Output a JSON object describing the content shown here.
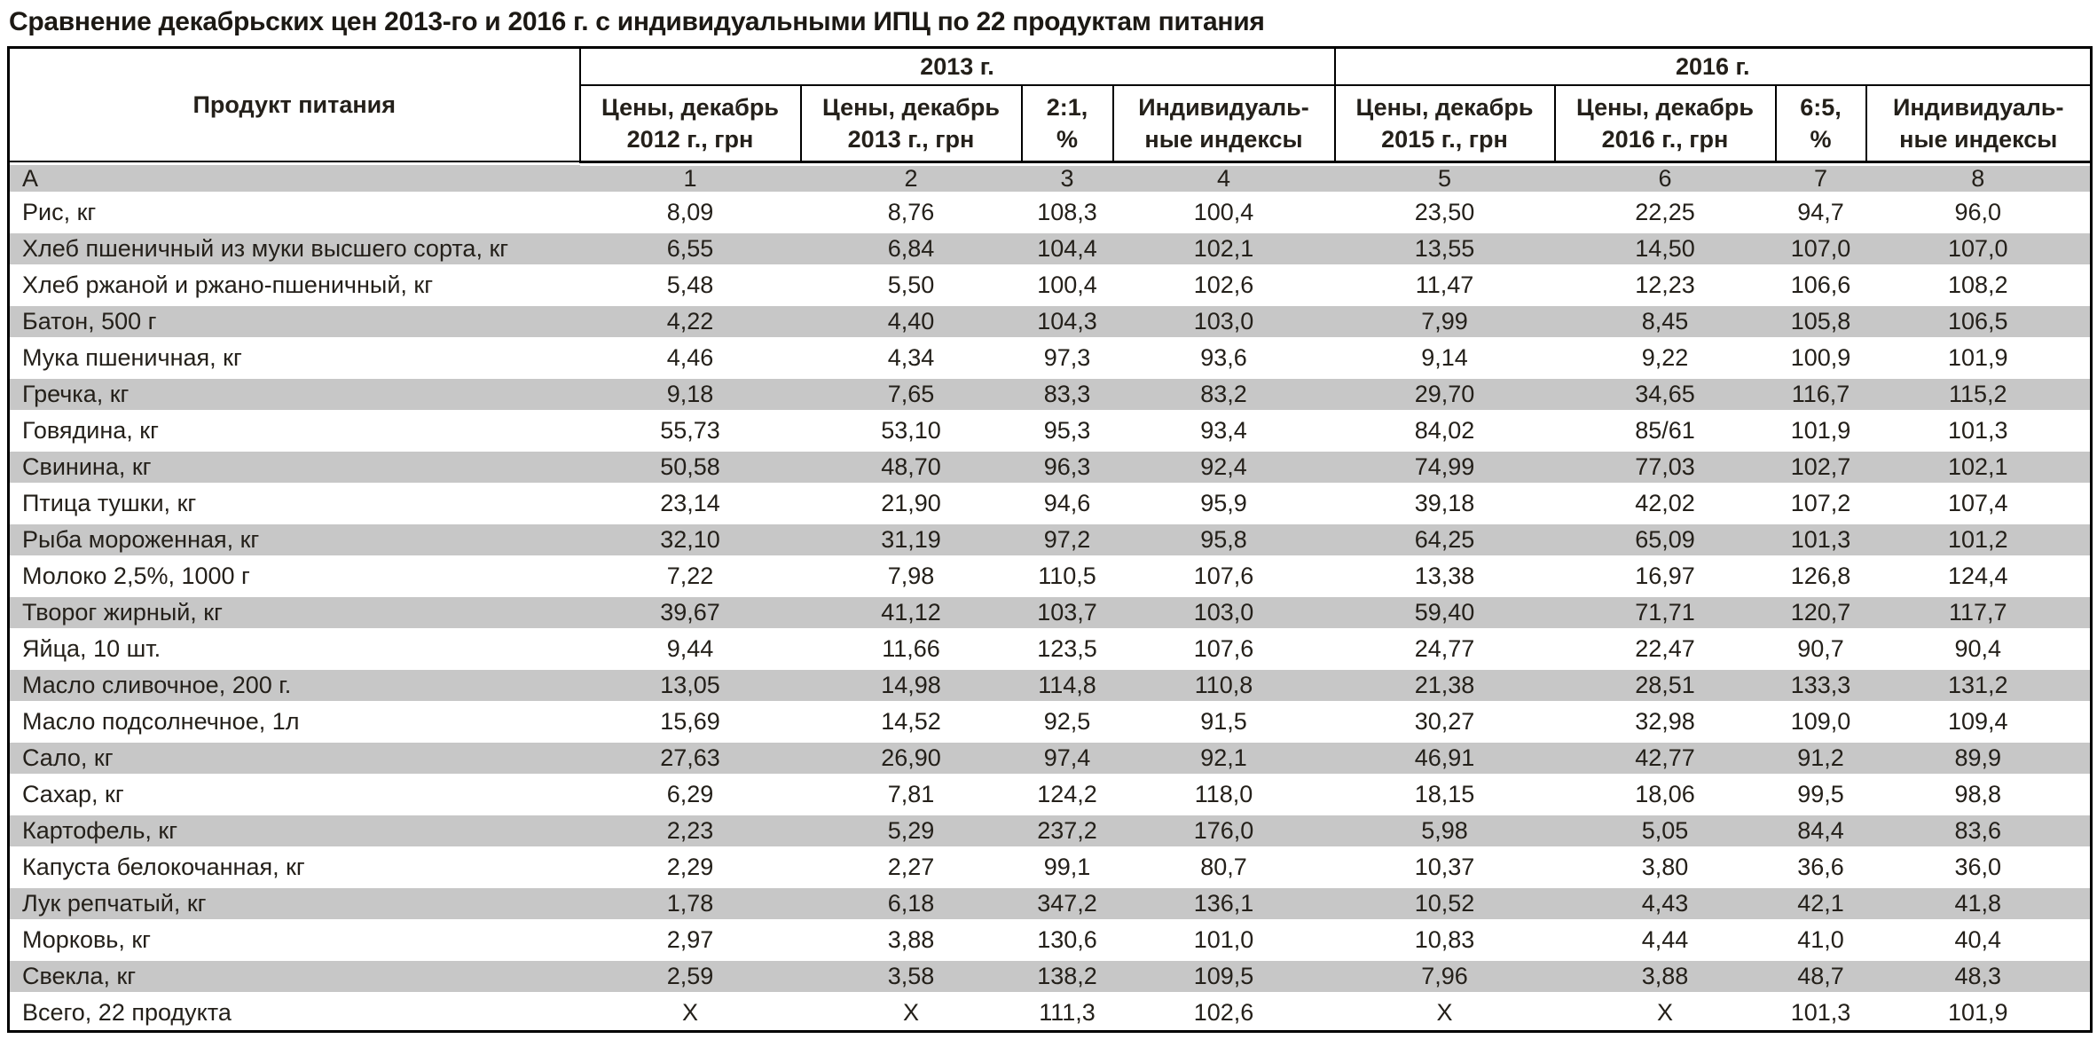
{
  "title": "Сравнение декабрьских цен 2013-го и 2016 г. с индивидуальными ИПЦ по 22 продуктам питания",
  "colors": {
    "stripe": "#c7c7c7",
    "border": "#000000",
    "text": "#24201a"
  },
  "table": {
    "product_header": "Продукт питания",
    "groups": [
      {
        "label": "2013 г."
      },
      {
        "label": "2016 г."
      }
    ],
    "subheaders": [
      {
        "line1": "Цены, декабрь",
        "line2": "2012 г., грн"
      },
      {
        "line1": "Цены, декабрь",
        "line2": "2013 г., грн"
      },
      {
        "line1": "2:1,",
        "line2": "%"
      },
      {
        "line1": "Индивидуаль-",
        "line2": "ные индексы"
      },
      {
        "line1": "Цены, декабрь",
        "line2": "2015 г., грн"
      },
      {
        "line1": "Цены, декабрь",
        "line2": "2016 г., грн"
      },
      {
        "line1": "6:5,",
        "line2": "%"
      },
      {
        "line1": "Индивидуаль-",
        "line2": "ные индексы"
      }
    ],
    "index_row": [
      "А",
      "1",
      "2",
      "3",
      "4",
      "5",
      "6",
      "7",
      "8"
    ],
    "rows": [
      [
        "Рис, кг",
        "8,09",
        "8,76",
        "108,3",
        "100,4",
        "23,50",
        "22,25",
        "94,7",
        "96,0"
      ],
      [
        "Хлеб пшеничный из муки высшего сорта, кг",
        "6,55",
        "6,84",
        "104,4",
        "102,1",
        "13,55",
        "14,50",
        "107,0",
        "107,0"
      ],
      [
        "Хлеб ржаной и ржано-пшеничный, кг",
        "5,48",
        "5,50",
        "100,4",
        "102,6",
        "11,47",
        "12,23",
        "106,6",
        "108,2"
      ],
      [
        "Батон, 500 г",
        "4,22",
        "4,40",
        "104,3",
        "103,0",
        "7,99",
        "8,45",
        "105,8",
        "106,5"
      ],
      [
        "Мука пшеничная, кг",
        "4,46",
        "4,34",
        "97,3",
        "93,6",
        "9,14",
        "9,22",
        "100,9",
        "101,9"
      ],
      [
        "Гречка, кг",
        "9,18",
        "7,65",
        "83,3",
        "83,2",
        "29,70",
        "34,65",
        "116,7",
        "115,2"
      ],
      [
        "Говядина, кг",
        "55,73",
        "53,10",
        "95,3",
        "93,4",
        "84,02",
        "85/61",
        "101,9",
        "101,3"
      ],
      [
        "Свинина, кг",
        "50,58",
        "48,70",
        "96,3",
        "92,4",
        "74,99",
        "77,03",
        "102,7",
        "102,1"
      ],
      [
        "Птица тушки, кг",
        "23,14",
        "21,90",
        "94,6",
        "95,9",
        "39,18",
        "42,02",
        "107,2",
        "107,4"
      ],
      [
        "Рыба мороженная, кг",
        "32,10",
        "31,19",
        "97,2",
        "95,8",
        "64,25",
        "65,09",
        "101,3",
        "101,2"
      ],
      [
        "Молоко 2,5%, 1000 г",
        "7,22",
        "7,98",
        "110,5",
        "107,6",
        "13,38",
        "16,97",
        "126,8",
        "124,4"
      ],
      [
        "Творог жирный, кг",
        "39,67",
        "41,12",
        "103,7",
        "103,0",
        "59,40",
        "71,71",
        "120,7",
        "117,7"
      ],
      [
        "Яйца, 10 шт.",
        "9,44",
        "11,66",
        "123,5",
        "107,6",
        "24,77",
        "22,47",
        "90,7",
        "90,4"
      ],
      [
        "Масло сливочное, 200 г.",
        "13,05",
        "14,98",
        "114,8",
        "110,8",
        "21,38",
        "28,51",
        "133,3",
        "131,2"
      ],
      [
        "Масло подсолнечное, 1л",
        "15,69",
        "14,52",
        "92,5",
        "91,5",
        "30,27",
        "32,98",
        "109,0",
        "109,4"
      ],
      [
        "Сало, кг",
        "27,63",
        "26,90",
        "97,4",
        "92,1",
        "46,91",
        "42,77",
        "91,2",
        "89,9"
      ],
      [
        "Сахар, кг",
        "6,29",
        "7,81",
        "124,2",
        "118,0",
        "18,15",
        "18,06",
        "99,5",
        "98,8"
      ],
      [
        "Картофель, кг",
        "2,23",
        "5,29",
        "237,2",
        "176,0",
        "5,98",
        "5,05",
        "84,4",
        "83,6"
      ],
      [
        "Капуста белокочанная, кг",
        "2,29",
        "2,27",
        "99,1",
        "80,7",
        "10,37",
        "3,80",
        "36,6",
        "36,0"
      ],
      [
        "Лук репчатый, кг",
        "1,78",
        "6,18",
        "347,2",
        "136,1",
        "10,52",
        "4,43",
        "42,1",
        "41,8"
      ],
      [
        "Морковь, кг",
        "2,97",
        "3,88",
        "130,6",
        "101,0",
        "10,83",
        "4,44",
        "41,0",
        "40,4"
      ],
      [
        "Свекла, кг",
        "2,59",
        "3,58",
        "138,2",
        "109,5",
        "7,96",
        "3,88",
        "48,7",
        "48,3"
      ],
      [
        "Всего, 22 продукта",
        "Х",
        "Х",
        "111,3",
        "102,6",
        "Х",
        "Х",
        "101,3",
        "101,9"
      ]
    ]
  }
}
